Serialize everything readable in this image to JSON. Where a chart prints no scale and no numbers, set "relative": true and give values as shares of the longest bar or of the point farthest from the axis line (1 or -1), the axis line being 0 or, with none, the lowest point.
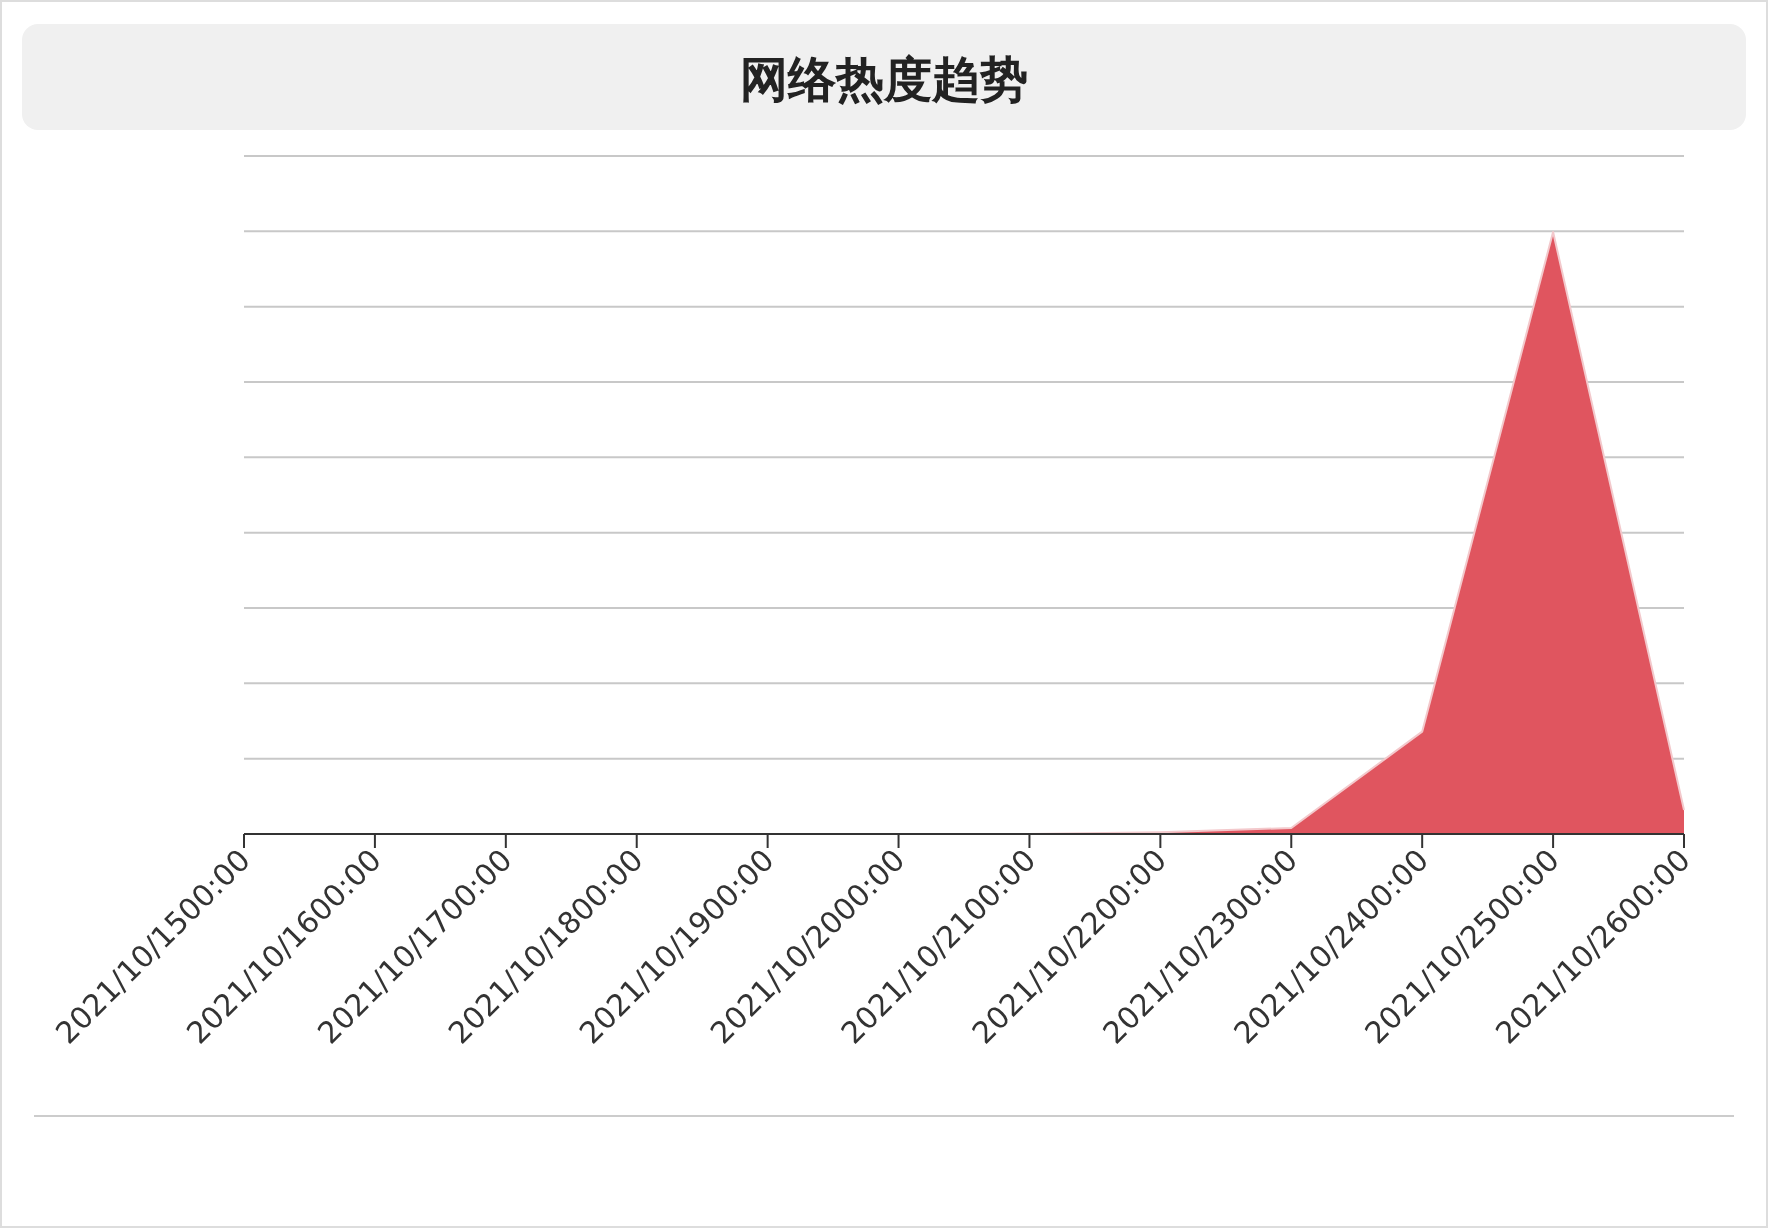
{
  "chart_data": {
    "type": "area",
    "title": "网络热度趋势",
    "relative": true,
    "grid": true,
    "categories": [
      "2021/10/1500:00",
      "2021/10/1600:00",
      "2021/10/1700:00",
      "2021/10/1800:00",
      "2021/10/1900:00",
      "2021/10/2000:00",
      "2021/10/2100:00",
      "2021/10/2200:00",
      "2021/10/2300:00",
      "2021/10/2400:00",
      "2021/10/2500:00",
      "2021/10/2600:00"
    ],
    "series": [
      {
        "color": "#e0555f",
        "values": [
          0,
          0,
          0,
          0,
          0,
          0,
          0,
          0.003,
          0.01,
          0.17,
          1,
          0.04
        ]
      }
    ]
  }
}
